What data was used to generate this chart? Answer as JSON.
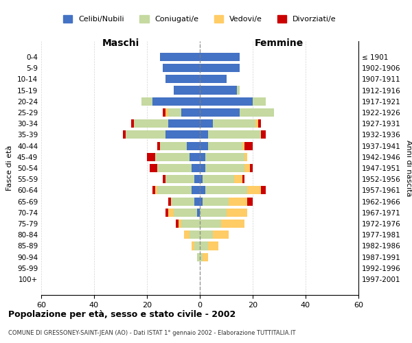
{
  "age_groups": [
    "0-4",
    "5-9",
    "10-14",
    "15-19",
    "20-24",
    "25-29",
    "30-34",
    "35-39",
    "40-44",
    "45-49",
    "50-54",
    "55-59",
    "60-64",
    "65-69",
    "70-74",
    "75-79",
    "80-84",
    "85-89",
    "90-94",
    "95-99",
    "100+"
  ],
  "birth_years": [
    "1997-2001",
    "1992-1996",
    "1987-1991",
    "1982-1986",
    "1977-1981",
    "1972-1976",
    "1967-1971",
    "1962-1966",
    "1957-1961",
    "1952-1956",
    "1947-1951",
    "1942-1946",
    "1937-1941",
    "1932-1936",
    "1927-1931",
    "1922-1926",
    "1917-1921",
    "1912-1916",
    "1907-1911",
    "1902-1906",
    "≤ 1901"
  ],
  "males": {
    "celibi": [
      15,
      14,
      13,
      10,
      18,
      7,
      12,
      13,
      5,
      4,
      3,
      2,
      3,
      2,
      1,
      0,
      0,
      0,
      0,
      0,
      0
    ],
    "coniugati": [
      0,
      0,
      0,
      0,
      4,
      5,
      13,
      15,
      10,
      13,
      13,
      11,
      13,
      9,
      9,
      7,
      4,
      2,
      1,
      0,
      0
    ],
    "vedovi": [
      0,
      0,
      0,
      0,
      0,
      1,
      0,
      0,
      0,
      0,
      0,
      0,
      1,
      0,
      2,
      1,
      2,
      1,
      0,
      0,
      0
    ],
    "divorziati": [
      0,
      0,
      0,
      0,
      0,
      1,
      1,
      1,
      1,
      3,
      3,
      1,
      1,
      1,
      1,
      1,
      0,
      0,
      0,
      0,
      0
    ]
  },
  "females": {
    "nubili": [
      15,
      15,
      10,
      14,
      20,
      15,
      5,
      3,
      3,
      2,
      2,
      1,
      2,
      1,
      0,
      0,
      0,
      0,
      0,
      0,
      0
    ],
    "coniugate": [
      0,
      0,
      0,
      1,
      5,
      13,
      16,
      20,
      13,
      15,
      15,
      12,
      16,
      10,
      10,
      8,
      5,
      3,
      1,
      0,
      0
    ],
    "vedove": [
      0,
      0,
      0,
      0,
      0,
      0,
      1,
      0,
      1,
      1,
      2,
      3,
      5,
      7,
      8,
      9,
      6,
      4,
      2,
      0,
      0
    ],
    "divorziate": [
      0,
      0,
      0,
      0,
      0,
      0,
      1,
      2,
      3,
      0,
      1,
      1,
      2,
      2,
      0,
      0,
      0,
      0,
      0,
      0,
      0
    ]
  },
  "color_celibi": "#4472C4",
  "color_coniugati": "#C5D9A0",
  "color_vedovi": "#FFCC66",
  "color_divorziati": "#CC0000",
  "xlim": 60,
  "title_main": "Popolazione per età, sesso e stato civile - 2002",
  "title_sub": "COMUNE DI GRESSONEY-SAINT-JEAN (AO) - Dati ISTAT 1° gennaio 2002 - Elaborazione TUTTITALIA.IT",
  "label_maschi": "Maschi",
  "label_femmine": "Femmine",
  "label_fasce": "Fasce di età",
  "label_anni": "Anni di nascita",
  "legend_celibi": "Celibi/Nubili",
  "legend_coniugati": "Coniugati/e",
  "legend_vedovi": "Vedovi/e",
  "legend_divorziati": "Divorziati/e"
}
